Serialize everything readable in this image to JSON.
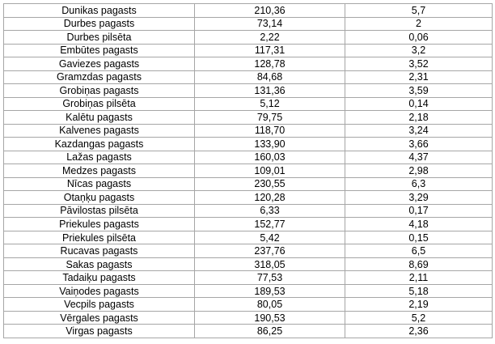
{
  "table": {
    "rows": [
      {
        "name": "Dunikas pagasts",
        "v1": "210,36",
        "v2": "5,7"
      },
      {
        "name": "Durbes pagasts",
        "v1": "73,14",
        "v2": "2"
      },
      {
        "name": "Durbes pilsēta",
        "v1": "2,22",
        "v2": "0,06"
      },
      {
        "name": "Embūtes pagasts",
        "v1": "117,31",
        "v2": "3,2"
      },
      {
        "name": "Gaviezes pagasts",
        "v1": "128,78",
        "v2": "3,52"
      },
      {
        "name": "Gramzdas pagasts",
        "v1": "84,68",
        "v2": "2,31"
      },
      {
        "name": "Grobiņas pagasts",
        "v1": "131,36",
        "v2": "3,59"
      },
      {
        "name": "Grobiņas pilsēta",
        "v1": "5,12",
        "v2": "0,14"
      },
      {
        "name": "Kalētu pagasts",
        "v1": "79,75",
        "v2": "2,18"
      },
      {
        "name": "Kalvenes pagasts",
        "v1": "118,70",
        "v2": "3,24"
      },
      {
        "name": "Kazdangas pagasts",
        "v1": "133,90",
        "v2": "3,66"
      },
      {
        "name": "Lažas pagasts",
        "v1": "160,03",
        "v2": "4,37"
      },
      {
        "name": "Medzes pagasts",
        "v1": "109,01",
        "v2": "2,98"
      },
      {
        "name": "Nīcas pagasts",
        "v1": "230,55",
        "v2": "6,3"
      },
      {
        "name": "Otaņķu pagasts",
        "v1": "120,28",
        "v2": "3,29"
      },
      {
        "name": "Pāvilostas pilsēta",
        "v1": "6,33",
        "v2": "0,17"
      },
      {
        "name": "Priekules pagasts",
        "v1": "152,77",
        "v2": "4,18"
      },
      {
        "name": "Priekules pilsēta",
        "v1": "5,42",
        "v2": "0,15"
      },
      {
        "name": "Rucavas pagasts",
        "v1": "237,76",
        "v2": "6,5"
      },
      {
        "name": "Sakas pagasts",
        "v1": "318,05",
        "v2": "8,69"
      },
      {
        "name": "Tadaiķu pagasts",
        "v1": "77,53",
        "v2": "2,11"
      },
      {
        "name": "Vaiņodes pagasts",
        "v1": "189,53",
        "v2": "5,18"
      },
      {
        "name": "Vecpils pagasts",
        "v1": "80,05",
        "v2": "2,19"
      },
      {
        "name": "Vērgales pagasts",
        "v1": "190,53",
        "v2": "5,2"
      },
      {
        "name": "Virgas pagasts",
        "v1": "86,25",
        "v2": "2,36"
      }
    ]
  }
}
